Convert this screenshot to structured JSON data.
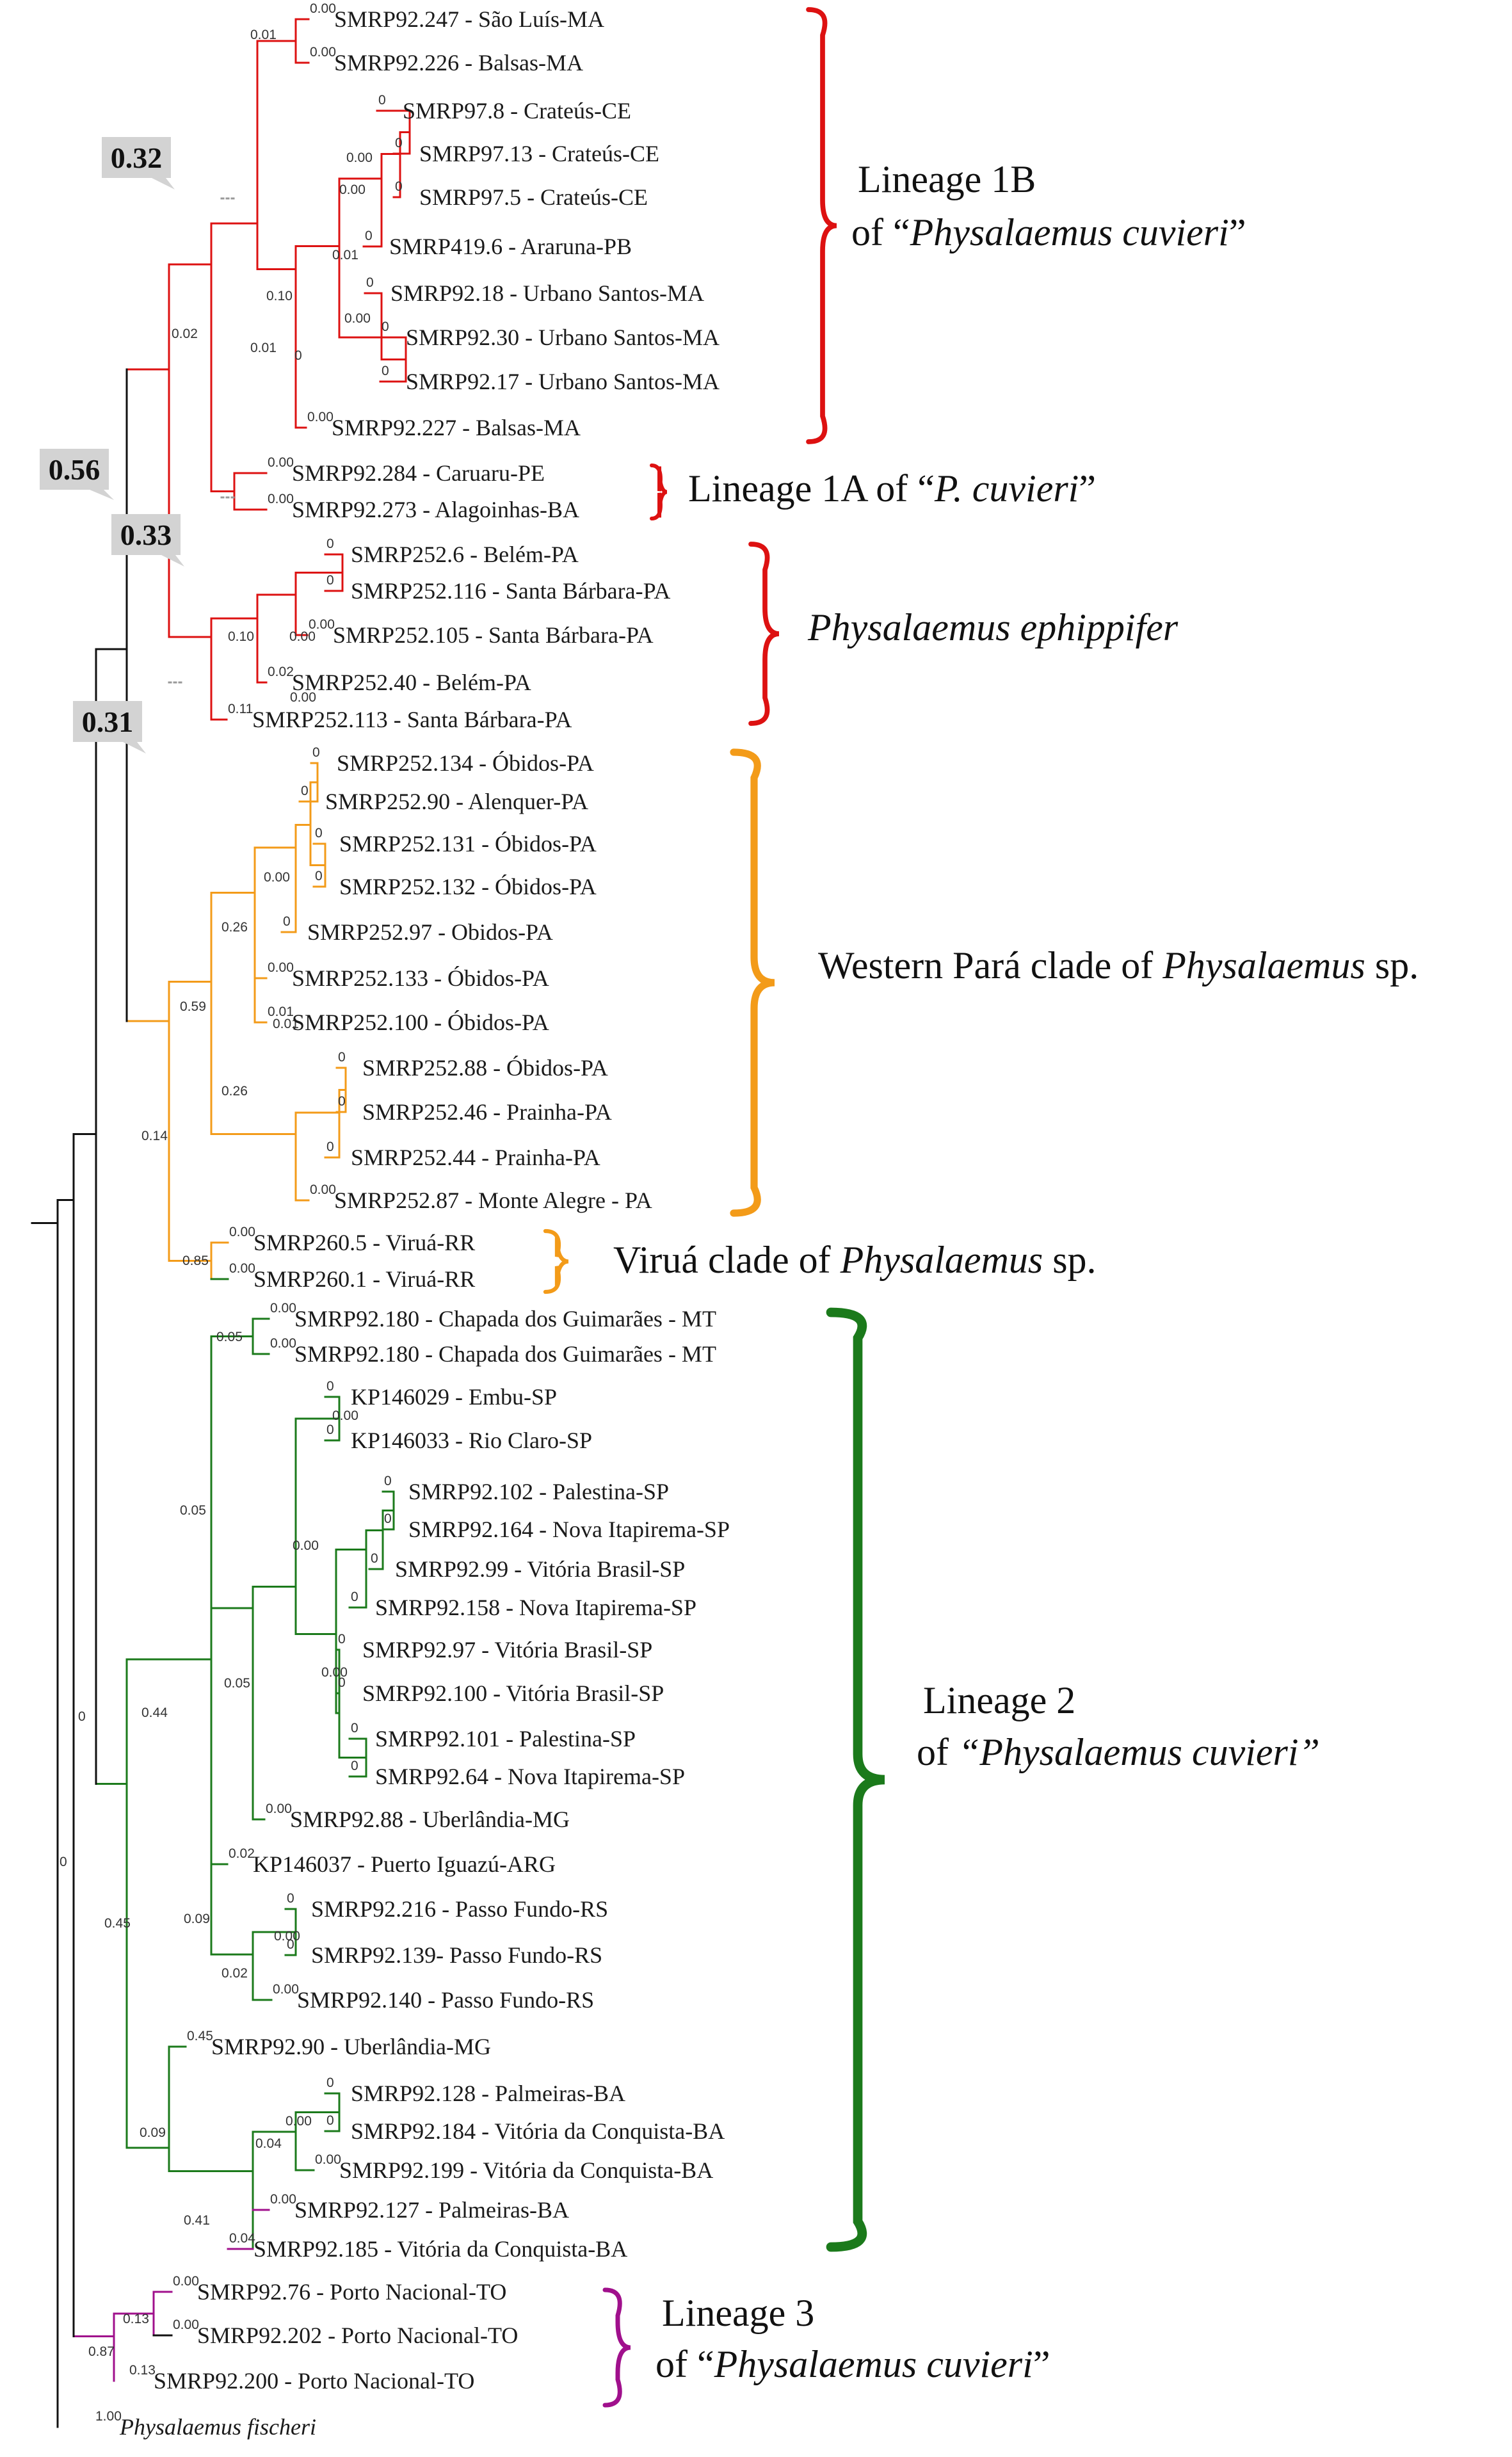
{
  "taxa": [
    {
      "label": "SMRP92.247 - São Luís-MA",
      "support": "0.00"
    },
    {
      "label": "SMRP92.226 - Balsas-MA",
      "support": "0.00"
    },
    {
      "label": "SMRP97.8 - Crateús-CE",
      "support": "0"
    },
    {
      "label": "SMRP97.13 - Crateús-CE",
      "support": "0"
    },
    {
      "label": "SMRP97.5 - Crateús-CE",
      "support": "0"
    },
    {
      "label": "SMRP419.6 - Araruna-PB",
      "support": "0"
    },
    {
      "label": "SMRP92.18 - Urbano Santos-MA",
      "support": "0"
    },
    {
      "label": "SMRP92.30 - Urbano Santos-MA",
      "support": "0"
    },
    {
      "label": "SMRP92.17 - Urbano Santos-MA",
      "support": "0"
    },
    {
      "label": "SMRP92.227 - Balsas-MA",
      "support": "0.00"
    },
    {
      "label": "SMRP92.284 - Caruaru-PE",
      "support": "0.00"
    },
    {
      "label": "SMRP92.273 - Alagoinhas-BA",
      "support": "0.00"
    },
    {
      "label": "SMRP252.6 - Belém-PA",
      "support": "0"
    },
    {
      "label": "SMRP252.116 - Santa Bárbara-PA",
      "support": "0"
    },
    {
      "label": "SMRP252.105 - Santa Bárbara-PA",
      "support": "0.00"
    },
    {
      "label": "SMRP252.40 - Belém-PA",
      "support": "0.02"
    },
    {
      "label": "SMRP252.113 - Santa Bárbara-PA",
      "support": "0.11"
    },
    {
      "label": "SMRP252.134 - Óbidos-PA",
      "support": "0"
    },
    {
      "label": "SMRP252.90 - Alenquer-PA",
      "support": "0"
    },
    {
      "label": "SMRP252.131 - Óbidos-PA",
      "support": "0"
    },
    {
      "label": "SMRP252.132 - Óbidos-PA",
      "support": "0"
    },
    {
      "label": "SMRP252.97 - Obidos-PA",
      "support": "0"
    },
    {
      "label": "SMRP252.133 - Óbidos-PA",
      "support": "0.00"
    },
    {
      "label": "SMRP252.100 - Óbidos-PA",
      "support": "0.01"
    },
    {
      "label": "SMRP252.88 - Óbidos-PA",
      "support": "0"
    },
    {
      "label": "SMRP252.46 - Prainha-PA",
      "support": "0"
    },
    {
      "label": "SMRP252.44 - Prainha-PA",
      "support": "0"
    },
    {
      "label": "SMRP252.87 - Monte Alegre - PA",
      "support": "0.00"
    },
    {
      "label": "SMRP260.5 - Viruá-RR",
      "support": "0.00"
    },
    {
      "label": "SMRP260.1 - Viruá-RR",
      "support": "0.00"
    },
    {
      "label": "SMRP92.180 - Chapada dos Guimarães - MT",
      "support": "0.00"
    },
    {
      "label": "SMRP92.180 - Chapada dos Guimarães - MT",
      "support": "0.00"
    },
    {
      "label": "KP146029 - Embu-SP",
      "support": "0"
    },
    {
      "label": "KP146033 - Rio Claro-SP",
      "support": "0"
    },
    {
      "label": "SMRP92.102 - Palestina-SP",
      "support": "0"
    },
    {
      "label": "SMRP92.164 - Nova Itapirema-SP",
      "support": "0"
    },
    {
      "label": "SMRP92.99 - Vitória Brasil-SP",
      "support": "0"
    },
    {
      "label": "SMRP92.158 - Nova Itapirema-SP",
      "support": "0"
    },
    {
      "label": "SMRP92.97 - Vitória Brasil-SP",
      "support": "0"
    },
    {
      "label": "SMRP92.100 - Vitória Brasil-SP",
      "support": "0"
    },
    {
      "label": "SMRP92.101 - Palestina-SP",
      "support": "0"
    },
    {
      "label": "SMRP92.64 - Nova Itapirema-SP",
      "support": "0"
    },
    {
      "label": "SMRP92.88 - Uberlândia-MG",
      "support": "0.00"
    },
    {
      "label": "KP146037 - Puerto Iguazú-ARG",
      "support": "0.02"
    },
    {
      "label": "SMRP92.216 - Passo Fundo-RS",
      "support": "0"
    },
    {
      "label": "SMRP92.139- Passo Fundo-RS",
      "support": "0"
    },
    {
      "label": "SMRP92.140 - Passo Fundo-RS",
      "support": "0.00"
    },
    {
      "label": "SMRP92.90 - Uberlândia-MG",
      "support": "0.45"
    },
    {
      "label": "SMRP92.128 - Palmeiras-BA",
      "support": "0"
    },
    {
      "label": "SMRP92.184 - Vitória da Conquista-BA",
      "support": "0"
    },
    {
      "label": "SMRP92.199 - Vitória da Conquista-BA",
      "support": "0.00"
    },
    {
      "label": "SMRP92.127 - Palmeiras-BA",
      "support": "0.00"
    },
    {
      "label": "SMRP92.185 - Vitória da Conquista-BA",
      "support": "0.04"
    },
    {
      "label": "SMRP92.76 - Porto Nacional-TO",
      "support": "0.00"
    },
    {
      "label": "SMRP92.202 - Porto Nacional-TO",
      "support": "0.00"
    },
    {
      "label": "SMRP92.200 - Porto Nacional-TO",
      "support": "0.13"
    },
    {
      "label": "Physalaemus fischeri",
      "support": "1.00",
      "italic": true
    }
  ],
  "internal_support": [
    "0.01",
    "0.00",
    "0.00",
    "0.00",
    "0.01",
    "0.00",
    "0.10",
    "0.02",
    "0.10",
    "0.01",
    "0",
    "0.00",
    "0.26",
    "0.00",
    "0.01",
    "0.26",
    "0.59",
    "0.85",
    "0.14",
    "0.05",
    "0.00",
    "0.00",
    "0.00",
    "0.05",
    "0.05",
    "0.02",
    "0.00",
    "0.09",
    "0.44",
    "0.00",
    "0.04",
    "0.41",
    "0.09",
    "0.45",
    "0.13",
    "0.87",
    "0",
    "0"
  ],
  "callouts": [
    "0.32",
    "0.56",
    "0.33",
    "0.31"
  ],
  "clades": [
    {
      "lines": [
        [
          {
            "t": "Lineage 1B",
            "i": false
          }
        ],
        [
          {
            "t": "of “",
            "i": false
          },
          {
            "t": "Physalaemus cuvieri",
            "i": true
          },
          {
            "t": "”",
            "i": false
          }
        ]
      ],
      "color": "#dd1111"
    },
    {
      "lines": [
        [
          {
            "t": "Lineage 1A of “",
            "i": false
          },
          {
            "t": "P. cuvieri",
            "i": true
          },
          {
            "t": "”",
            "i": false
          }
        ]
      ],
      "color": "#dd1111"
    },
    {
      "lines": [
        [
          {
            "t": "Physalaemus ephippifer",
            "i": true
          }
        ]
      ],
      "color": "#dd1111"
    },
    {
      "lines": [
        [
          {
            "t": "Western Pará clade of ",
            "i": false
          },
          {
            "t": "Physalaemus",
            "i": true
          },
          {
            "t": " sp.",
            "i": false
          }
        ]
      ],
      "color": "#f39b19"
    },
    {
      "lines": [
        [
          {
            "t": "Viruá clade of ",
            "i": false
          },
          {
            "t": "Physalaemus",
            "i": true
          },
          {
            "t": " sp.",
            "i": false
          }
        ]
      ],
      "color": "#f39b19"
    },
    {
      "lines": [
        [
          {
            "t": "Lineage 2",
            "i": false
          }
        ],
        [
          {
            "t": "of ",
            "i": false
          },
          {
            "t": "“Physalaemus cuvieri”",
            "i": true
          }
        ]
      ],
      "color": "#1b7a1b"
    },
    {
      "lines": [
        [
          {
            "t": "Lineage 3",
            "i": false
          }
        ],
        [
          {
            "t": "of “",
            "i": false
          },
          {
            "t": "Physalaemus cuvieri",
            "i": true
          },
          {
            "t": "”",
            "i": false
          }
        ]
      ],
      "color": "#a0108c"
    }
  ],
  "colors": {
    "lineage_1": "#dd1111",
    "western_para": "#f39b19",
    "lineage_2": "#1b7a1b",
    "lineage_3": "#a0108c",
    "backbone": "#111111"
  }
}
